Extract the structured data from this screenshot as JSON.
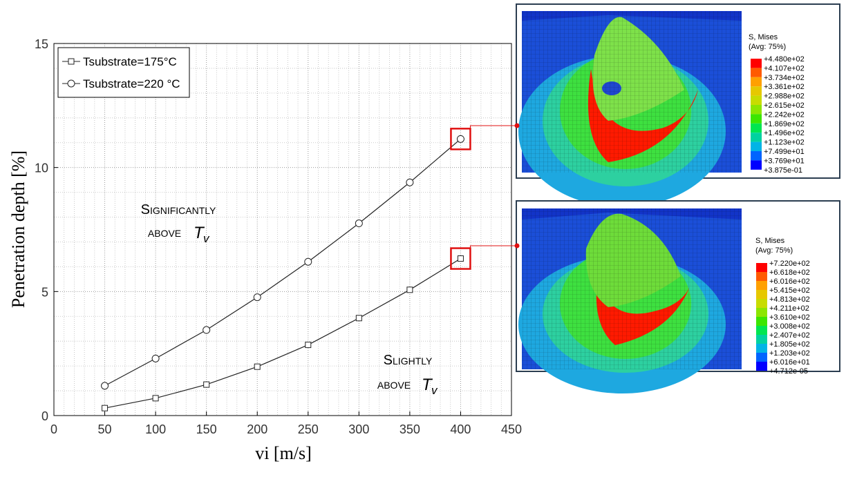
{
  "chart_data": {
    "type": "line",
    "x_label": "vi [m/s]",
    "y_label": "Penetration depth [%]",
    "x": [
      50,
      100,
      150,
      200,
      250,
      300,
      350,
      400
    ],
    "series": [
      {
        "name": "Tsubstrate=175°C",
        "color": "#222222",
        "marker": "square",
        "values": [
          0.3,
          0.7,
          1.25,
          1.97,
          2.85,
          3.93,
          5.07,
          6.33
        ]
      },
      {
        "name": "Tsubstrate=220 °C",
        "color": "#222222",
        "marker": "circle",
        "values": [
          1.2,
          2.3,
          3.45,
          4.77,
          6.2,
          7.75,
          9.4,
          11.15
        ]
      }
    ],
    "xlim": [
      0,
      450
    ],
    "xticks": [
      0,
      50,
      100,
      150,
      200,
      250,
      300,
      350,
      400,
      450
    ],
    "ylim": [
      0,
      15
    ],
    "yticks": [
      0,
      5,
      10,
      15
    ],
    "grid": true,
    "legend": "upper left",
    "annotations": [
      {
        "lines": [
          "Significantly",
          "above"
        ],
        "symbol": "T",
        "sub": "v"
      },
      {
        "lines": [
          "Slightly",
          "above"
        ],
        "symbol": "T",
        "sub": "v"
      }
    ]
  },
  "insets": [
    {
      "title": "S, Mises",
      "subtitle": "(Avg: 75%)",
      "labels": [
        "+4.480e+02",
        "+4.107e+02",
        "+3.734e+02",
        "+3.361e+02",
        "+2.988e+02",
        "+2.615e+02",
        "+2.242e+02",
        "+1.869e+02",
        "+1.496e+02",
        "+1.123e+02",
        "+7.499e+01",
        "+3.769e+01",
        "+3.875e-01"
      ]
    },
    {
      "title": "S, Mises",
      "subtitle": "(Avg: 75%)",
      "labels": [
        "+7.220e+02",
        "+6.618e+02",
        "+6.016e+02",
        "+5.415e+02",
        "+4.813e+02",
        "+4.211e+02",
        "+3.610e+02",
        "+3.008e+02",
        "+2.407e+02",
        "+1.805e+02",
        "+1.203e+02",
        "+6.016e+01",
        "+4.712e-05"
      ]
    }
  ],
  "colorbar_colors": [
    "#ff0000",
    "#ff5a00",
    "#ffa000",
    "#e6c800",
    "#c8dc00",
    "#8ce600",
    "#3ce600",
    "#00e650",
    "#00d2a0",
    "#00b4e6",
    "#0064ff",
    "#0000ff"
  ]
}
